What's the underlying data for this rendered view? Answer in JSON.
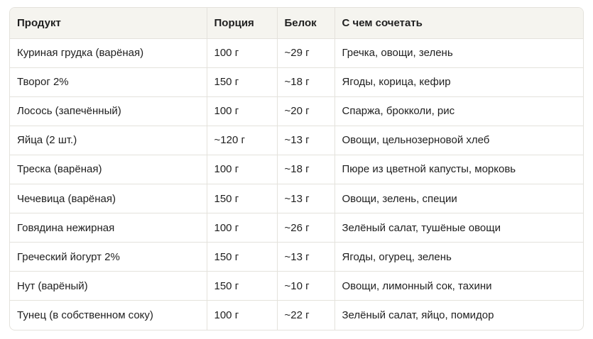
{
  "table": {
    "headers": [
      "Продукт",
      "Порция",
      "Белок",
      "С чем сочетать"
    ],
    "rows": [
      [
        "Куриная грудка (варёная)",
        "100 г",
        "~29 г",
        "Гречка, овощи, зелень"
      ],
      [
        "Творог 2%",
        "150 г",
        "~18 г",
        "Ягоды, корица, кефир"
      ],
      [
        "Лосось (запечённый)",
        "100 г",
        "~20 г",
        "Спаржа, брокколи, рис"
      ],
      [
        "Яйца (2 шт.)",
        "~120 г",
        "~13 г",
        "Овощи, цельнозерновой хлеб"
      ],
      [
        "Треска (варёная)",
        "100 г",
        "~18 г",
        "Пюре из цветной капусты, морковь"
      ],
      [
        "Чечевица (варёная)",
        "150 г",
        "~13 г",
        "Овощи, зелень, специи"
      ],
      [
        "Говядина нежирная",
        "100 г",
        "~26 г",
        "Зелёный салат, тушёные овощи"
      ],
      [
        "Греческий йогурт 2%",
        "150 г",
        "~13 г",
        "Ягоды, огурец, зелень"
      ],
      [
        "Нут (варёный)",
        "150 г",
        "~10 г",
        "Овощи, лимонный сок, тахини"
      ],
      [
        "Тунец (в собственном соку)",
        "100 г",
        "~22 г",
        "Зелёный салат, яйцо, помидор"
      ]
    ]
  }
}
